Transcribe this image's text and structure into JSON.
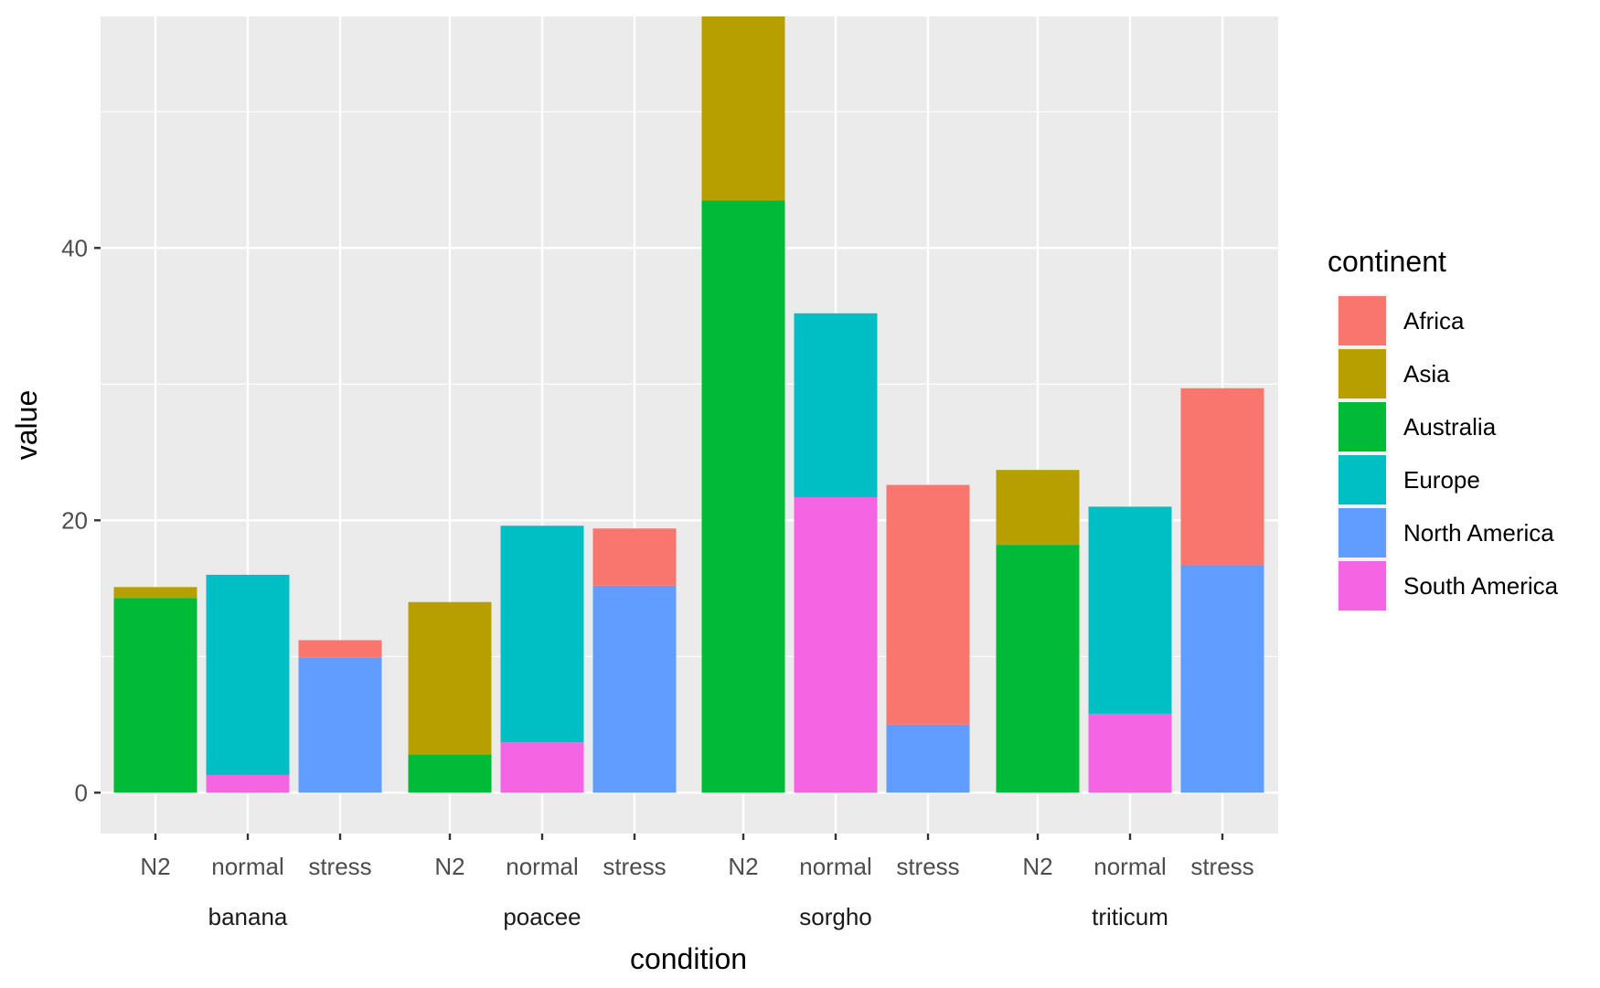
{
  "chart_data": {
    "type": "bar",
    "stacked": true,
    "faceted_x": true,
    "groups": [
      "banana",
      "poacee",
      "sorgho",
      "triticum"
    ],
    "categories": [
      "N2",
      "normal",
      "stress"
    ],
    "xlabel": "condition",
    "ylabel": "value",
    "ylim": [
      -3,
      57
    ],
    "yticks": [
      0,
      20,
      40
    ],
    "grid": true,
    "legend": {
      "title": "continent",
      "position": "right"
    },
    "series": [
      {
        "name": "Africa",
        "color": "#F8766D",
        "values": {
          "banana": [
            0,
            0,
            1.3
          ],
          "poacee": [
            0,
            0,
            4.2
          ],
          "sorgho": [
            0,
            0,
            17.6
          ],
          "triticum": [
            0,
            0,
            13.0
          ]
        }
      },
      {
        "name": "Asia",
        "color": "#B79F00",
        "values": {
          "banana": [
            0.8,
            0,
            0
          ],
          "poacee": [
            11.2,
            0,
            0
          ],
          "sorgho": [
            13.5,
            0,
            0
          ],
          "triticum": [
            5.5,
            0,
            0
          ]
        }
      },
      {
        "name": "Australia",
        "color": "#00BA38",
        "values": {
          "banana": [
            14.3,
            0,
            0
          ],
          "poacee": [
            2.8,
            0,
            0
          ],
          "sorgho": [
            43.5,
            0,
            0
          ],
          "triticum": [
            18.2,
            0,
            0
          ]
        }
      },
      {
        "name": "Europe",
        "color": "#00BFC4",
        "values": {
          "banana": [
            0,
            14.7,
            0
          ],
          "poacee": [
            0,
            15.9,
            0
          ],
          "sorgho": [
            0,
            13.5,
            0
          ],
          "triticum": [
            0,
            15.2,
            0
          ]
        }
      },
      {
        "name": "North America",
        "color": "#619CFF",
        "values": {
          "banana": [
            0,
            0,
            9.9
          ],
          "poacee": [
            0,
            0,
            15.2
          ],
          "sorgho": [
            0,
            0,
            5.0
          ],
          "triticum": [
            0,
            0,
            16.7
          ]
        }
      },
      {
        "name": "South America",
        "color": "#F564E3",
        "values": {
          "banana": [
            0,
            1.3,
            0
          ],
          "poacee": [
            0,
            3.7,
            0
          ],
          "sorgho": [
            0,
            21.7,
            0
          ],
          "triticum": [
            0,
            5.8,
            0
          ]
        }
      }
    ]
  }
}
